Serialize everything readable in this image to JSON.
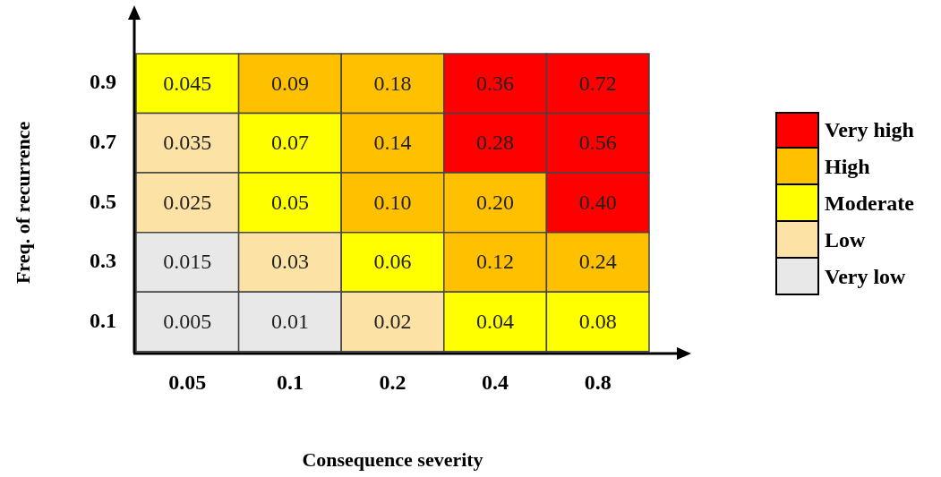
{
  "chart_data": {
    "type": "heatmap",
    "xlabel": "Consequence severity",
    "ylabel": "Freq. of recurrence",
    "categories": [
      "0.05",
      "0.1",
      "0.2",
      "0.4",
      "0.8"
    ],
    "y_categories": [
      "0.9",
      "0.7",
      "0.5",
      "0.3",
      "0.1"
    ],
    "cells": [
      [
        0.045,
        0.09,
        0.18,
        0.36,
        0.72
      ],
      [
        0.035,
        0.07,
        0.14,
        0.28,
        0.56
      ],
      [
        0.025,
        0.05,
        0.1,
        0.2,
        0.4
      ],
      [
        0.015,
        0.03,
        0.06,
        0.12,
        0.24
      ],
      [
        0.005,
        0.01,
        0.02,
        0.04,
        0.08
      ]
    ],
    "colors": [
      [
        "#ffff00",
        "#ffc000",
        "#ffc000",
        "#ff0000",
        "#ff0000"
      ],
      [
        "#fde2a6",
        "#ffff00",
        "#ffc000",
        "#ff0000",
        "#ff0000"
      ],
      [
        "#fde2a6",
        "#ffff00",
        "#ffc000",
        "#ffc000",
        "#ff0000"
      ],
      [
        "#e8e8e8",
        "#fde2a6",
        "#ffff00",
        "#ffc000",
        "#ffc000"
      ],
      [
        "#e8e8e8",
        "#e8e8e8",
        "#fde2a6",
        "#ffff00",
        "#ffff00"
      ]
    ],
    "cell_labels": [
      [
        "0.045",
        "0.09",
        "0.18",
        "0.36",
        "0.72"
      ],
      [
        "0.035",
        "0.07",
        "0.14",
        "0.28",
        "0.56"
      ],
      [
        "0.025",
        "0.05",
        "0.10",
        "0.20",
        "0.40"
      ],
      [
        "0.015",
        "0.03",
        "0.06",
        "0.12",
        "0.24"
      ],
      [
        "0.005",
        "0.01",
        "0.02",
        "0.04",
        "0.08"
      ]
    ],
    "annotations": [
      "Very high",
      "High",
      "Moderate",
      "Low",
      "Very low"
    ]
  }
}
